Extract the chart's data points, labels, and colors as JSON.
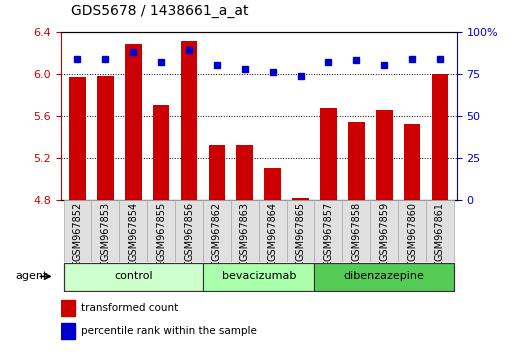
{
  "title": "GDS5678 / 1438661_a_at",
  "samples": [
    "GSM967852",
    "GSM967853",
    "GSM967854",
    "GSM967855",
    "GSM967856",
    "GSM967862",
    "GSM967863",
    "GSM967864",
    "GSM967865",
    "GSM967857",
    "GSM967858",
    "GSM967859",
    "GSM967860",
    "GSM967861"
  ],
  "bar_values": [
    5.97,
    5.98,
    6.28,
    5.7,
    6.31,
    5.32,
    5.32,
    5.1,
    4.82,
    5.68,
    5.54,
    5.66,
    5.52,
    6.0
  ],
  "dot_values": [
    84,
    84,
    88,
    82,
    89,
    80,
    78,
    76,
    74,
    82,
    83,
    80,
    84,
    84
  ],
  "groups": [
    {
      "label": "control",
      "start": 0,
      "end": 5
    },
    {
      "label": "bevacizumab",
      "start": 5,
      "end": 9
    },
    {
      "label": "dibenzazepine",
      "start": 9,
      "end": 14
    }
  ],
  "group_colors": [
    "#ccffcc",
    "#aaffaa",
    "#55cc55"
  ],
  "ylim_left": [
    4.8,
    6.4
  ],
  "ylim_right": [
    0,
    100
  ],
  "yticks_left": [
    4.8,
    5.2,
    5.6,
    6.0,
    6.4
  ],
  "yticks_right": [
    0,
    25,
    50,
    75,
    100
  ],
  "bar_color": "#cc0000",
  "dot_color": "#0000cc",
  "bar_width": 0.6,
  "legend_bar_label": "transformed count",
  "legend_dot_label": "percentile rank within the sample",
  "agent_label": "agent",
  "background_color": "#ffffff",
  "plot_bg_color": "#ffffff",
  "title_fontsize": 10,
  "tick_fontsize": 7,
  "axis_fontsize": 8,
  "group_fontsize": 8
}
